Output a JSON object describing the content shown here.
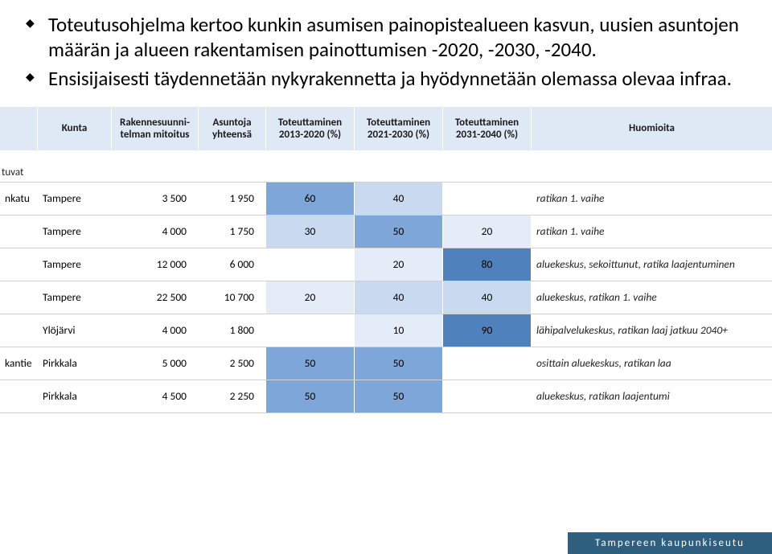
{
  "bullets": [
    "Toteutusohjelma kertoo kunkin asumisen painopistealueen kasvun, uusien asuntojen määrän ja alueen rakentamisen painottumisen -2020, -2030, -2040.",
    "Ensisijaisesti täydennetään nykyrakennetta ja hyödynnetään olemassa olevaa infraa."
  ],
  "headers": {
    "kunta": "Kunta",
    "mitoitus": "Rakennesuunni-telman mitoitus",
    "asuntoja": "Asuntoja yhteensä",
    "t1": "Toteuttaminen 2013-2020 (%)",
    "t2": "Toteuttaminen 2021-2030 (%)",
    "t3": "Toteuttaminen 2031-2040 (%)",
    "huom": "Huomioita"
  },
  "colors": {
    "header_bg": "#dfe9f5",
    "pct_mid": "#7fa6d9",
    "pct_dark": "#4f81bd",
    "pct_light": "#c9daf0",
    "pct_pale": "#e4ecf7"
  },
  "section_label": "tuvat",
  "rows": [
    {
      "alue": "nkatu",
      "kunta": "Tampere",
      "mitoitus": "3 500",
      "asuntoja": "1 950",
      "t1": {
        "v": "60",
        "shade": "mid"
      },
      "t2": {
        "v": "40",
        "shade": "light"
      },
      "t3": {
        "v": "",
        "shade": "none"
      },
      "huom": "ratikan 1. vaihe"
    },
    {
      "alue": "",
      "kunta": "Tampere",
      "mitoitus": "4 000",
      "asuntoja": "1 750",
      "t1": {
        "v": "30",
        "shade": "light"
      },
      "t2": {
        "v": "50",
        "shade": "mid"
      },
      "t3": {
        "v": "20",
        "shade": "pale"
      },
      "huom": "ratikan 1. vaihe"
    },
    {
      "alue": "",
      "kunta": "Tampere",
      "mitoitus": "12 000",
      "asuntoja": "6 000",
      "t1": {
        "v": "",
        "shade": "none"
      },
      "t2": {
        "v": "20",
        "shade": "pale"
      },
      "t3": {
        "v": "80",
        "shade": "dark"
      },
      "huom": "aluekeskus, sekoittunut, ratika laajentuminen"
    },
    {
      "alue": "",
      "kunta": "Tampere",
      "mitoitus": "22 500",
      "asuntoja": "10 700",
      "t1": {
        "v": "20",
        "shade": "pale"
      },
      "t2": {
        "v": "40",
        "shade": "light"
      },
      "t3": {
        "v": "40",
        "shade": "light"
      },
      "huom": "aluekeskus, ratikan 1. vaihe"
    },
    {
      "alue": "",
      "kunta": "Ylöjärvi",
      "mitoitus": "4 000",
      "asuntoja": "1 800",
      "t1": {
        "v": "",
        "shade": "none"
      },
      "t2": {
        "v": "10",
        "shade": "pale"
      },
      "t3": {
        "v": "90",
        "shade": "dark"
      },
      "huom": "lähipalvelukeskus, ratikan laaj jatkuu 2040+"
    },
    {
      "alue": "kantie",
      "kunta": "Pirkkala",
      "mitoitus": "5 000",
      "asuntoja": "2 500",
      "t1": {
        "v": "50",
        "shade": "mid"
      },
      "t2": {
        "v": "50",
        "shade": "mid"
      },
      "t3": {
        "v": "",
        "shade": "none"
      },
      "huom": "osittain aluekeskus, ratikan laa"
    },
    {
      "alue": "",
      "kunta": "Pirkkala",
      "mitoitus": "4 500",
      "asuntoja": "2 250",
      "t1": {
        "v": "50",
        "shade": "mid"
      },
      "t2": {
        "v": "50",
        "shade": "mid"
      },
      "t3": {
        "v": "",
        "shade": "none"
      },
      "huom": "aluekeskus, ratikan laajentumi"
    }
  ],
  "footer": "Tampereen kaupunkiseutu"
}
